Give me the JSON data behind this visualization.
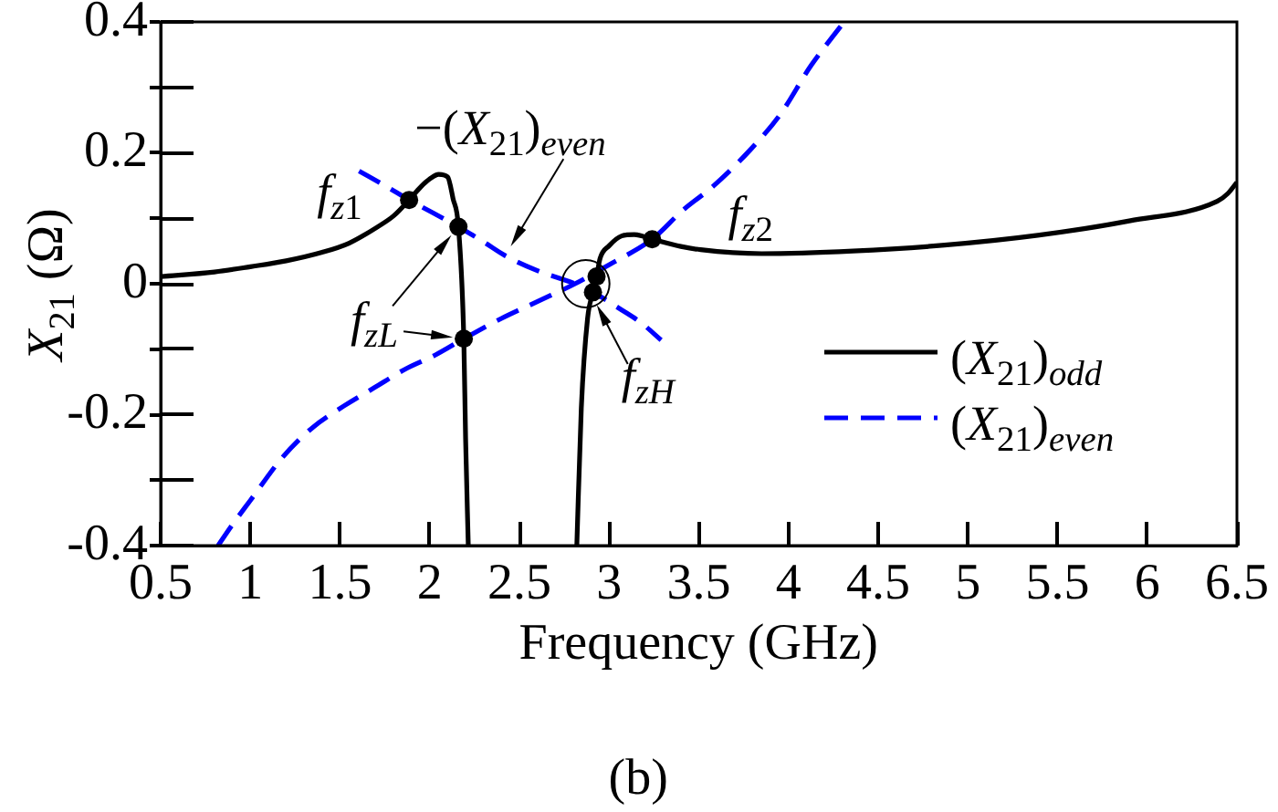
{
  "chart_data": {
    "type": "line",
    "xlabel": "Frequency (GHz)",
    "ylabel": "X$_{21}$ (Ω)",
    "xlim": [
      0.5,
      6.5
    ],
    "ylim": [
      -0.4,
      0.4
    ],
    "xticks": [
      0.5,
      1,
      1.5,
      2,
      2.5,
      3,
      3.5,
      4,
      4.5,
      5,
      5.5,
      6,
      6.5
    ],
    "yticks": [
      -0.4,
      {
        "value": -0.3,
        "label": null
      },
      -0.2,
      {
        "value": -0.1,
        "label": null
      },
      0,
      {
        "value": 0.1,
        "label": null
      },
      0.2,
      {
        "value": 0.3,
        "label": null
      },
      0.4
    ],
    "legend": "bottom right",
    "series": [
      {
        "name": "(X$_{21}$)$_{odd}$",
        "type": "line",
        "color": "#000000",
        "line_style": "solid",
        "marker": "none",
        "x": [
          0.5,
          0.8,
          1.0,
          1.2,
          1.4,
          1.55,
          1.71,
          1.8,
          1.885,
          1.95,
          2.0,
          2.05,
          2.1,
          2.13,
          2.16,
          2.19,
          2.2,
          2.215,
          2.5,
          2.82,
          2.845,
          2.88,
          2.91,
          2.93,
          2.95,
          3.0,
          3.07,
          3.14,
          3.24,
          3.4,
          3.51,
          3.85,
          4.36,
          4.87,
          5.39,
          5.9,
          6.39,
          6.45,
          6.5
        ],
        "values": [
          0.011,
          0.018,
          0.026,
          0.035,
          0.048,
          0.062,
          0.087,
          0.104,
          0.128,
          0.148,
          0.16,
          0.167,
          0.163,
          0.13,
          0.087,
          -0.084,
          -0.237,
          -0.4,
          null,
          -0.4,
          -0.19,
          -0.053,
          -0.013,
          0.011,
          0.039,
          0.058,
          0.073,
          0.075,
          0.068,
          0.057,
          0.052,
          0.046,
          0.05,
          0.059,
          0.074,
          0.096,
          0.126,
          0.138,
          0.155
        ]
      },
      {
        "name": "(X$_{21}$)$_{even}$",
        "type": "line",
        "color": "#0000ff",
        "line_style": "dashed",
        "marker": "none",
        "x": [
          0.82,
          0.9,
          1.0,
          1.18,
          1.35,
          1.52,
          1.69,
          1.86,
          2.03,
          2.19,
          2.4,
          2.61,
          2.81,
          3.0,
          3.24,
          3.41,
          3.58,
          3.785,
          3.955,
          4.125,
          4.31
        ],
        "values": [
          -0.4,
          -0.368,
          -0.331,
          -0.265,
          -0.219,
          -0.187,
          -0.159,
          -0.131,
          -0.109,
          -0.084,
          -0.053,
          -0.026,
          0.0,
          0.029,
          0.068,
          0.112,
          0.149,
          0.204,
          0.259,
          0.333,
          0.4
        ]
      },
      {
        "type": "line",
        "color": "#0000ff",
        "line_style": "dashed",
        "marker": "none",
        "x": [
          1.606,
          1.75,
          1.885,
          2.02,
          2.16,
          2.3,
          2.42,
          2.6,
          2.81,
          2.91,
          3.07,
          3.18,
          3.29
        ],
        "values": [
          0.172,
          0.15,
          0.128,
          0.108,
          0.087,
          0.064,
          0.043,
          0.02,
          0.0,
          -0.013,
          -0.04,
          -0.06,
          -0.086
        ]
      },
      {
        "type": "scatter",
        "color": "#000000",
        "marker": "circle",
        "x": [
          1.885,
          2.16,
          2.19,
          2.91,
          2.93,
          3.24
        ],
        "values": [
          0.128,
          0.087,
          -0.084,
          -0.013,
          0.011,
          0.068
        ]
      }
    ],
    "annotations": [
      {
        "text": "−(X$_{21}$)$_{even}$",
        "x": 2.42,
        "y": 0.043
      },
      {
        "text": "f$_{z1}$",
        "x": 1.885,
        "y": 0.128
      },
      {
        "text": "f$_{zL}$",
        "x": 2.19,
        "y": -0.084
      },
      {
        "text": "f$_{zH}$",
        "x": 2.87,
        "y": 0.0
      },
      {
        "text": "f$_{z2}$",
        "x": 3.24,
        "y": 0.068
      },
      "(b)"
    ]
  }
}
